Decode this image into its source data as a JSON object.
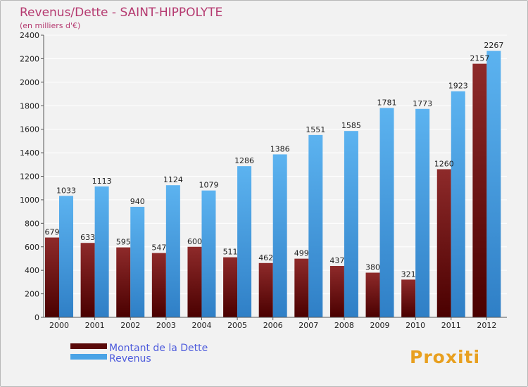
{
  "chart_data": {
    "type": "bar",
    "title": "Revenus/Dette - SAINT-HIPPOLYTE",
    "subtitle": "(en milliers d'€)",
    "categories": [
      "2000",
      "2001",
      "2002",
      "2003",
      "2004",
      "2005",
      "2006",
      "2007",
      "2008",
      "2009",
      "2010",
      "2011",
      "2012"
    ],
    "series": [
      {
        "name": "Montant de la Dette",
        "color": "#7a1a1a",
        "values": [
          679,
          633,
          595,
          547,
          600,
          511,
          462,
          499,
          437,
          380,
          321,
          1260,
          2157
        ]
      },
      {
        "name": "Revenus",
        "color": "#4aa3e6",
        "values": [
          1033,
          1113,
          940,
          1124,
          1079,
          1286,
          1386,
          1551,
          1585,
          1781,
          1773,
          1923,
          2267
        ]
      }
    ],
    "ylim": [
      0,
      2400
    ],
    "yticks": [
      0,
      200,
      400,
      600,
      800,
      1000,
      1200,
      1400,
      1600,
      1800,
      2000,
      2200,
      2400
    ],
    "grid": true,
    "legend_position": "bottom-left"
  },
  "brand": {
    "logo_text": "Proxiti"
  }
}
